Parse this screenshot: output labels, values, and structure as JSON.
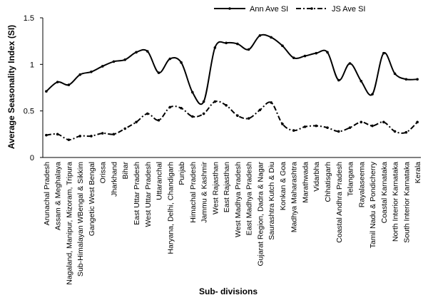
{
  "chart_data": {
    "type": "line",
    "title": "",
    "xlabel": "Sub- divisions",
    "ylabel": "Average Seasonality Index (SI)",
    "ylim": [
      0,
      1.5
    ],
    "y_ticks": [
      "0",
      "0.5",
      "1",
      "1.5"
    ],
    "grid": false,
    "legend_position": "top-right",
    "categories": [
      "Arunachal Pradesh",
      "Assam & Meghalaya",
      "Nagaland, Manipur, Mizoram, Tripura",
      "Sub-Himalayan WBengal & Sikkim",
      "Gangetic West Bengal",
      "Orissa",
      "Jharkhand",
      "Bihar",
      "East Uttar Pradesh",
      "West Uttar Pradesh",
      "Uttaranchal",
      "Haryana, Delhi, Chandigarh",
      "Punjab",
      "Himachal Pradesh",
      "Jammu & Kashmir",
      "West Rajasthan",
      "East Rajasthan",
      "West Madhya Pradesh",
      "East Madhya Pradesh",
      "Gujarat Region, Dadra & Nagar",
      "Saurashtra Kutch & Diu",
      "Konkan & Goa",
      "Madhya Maharashtra",
      "Marathwada",
      "Vidarbha",
      "Chhatisgarh",
      "Coastal Andhra Pradesh",
      "Telangana",
      "Rayalaseema",
      "Tamil Nadu & Pondicherry",
      "Coastal Karnataka",
      "North Interior Karnataka",
      "South Interior Karnataka",
      "Kerala"
    ],
    "series": [
      {
        "name": "Ann Ave SI",
        "style": "solid",
        "values": [
          0.71,
          0.81,
          0.78,
          0.89,
          0.92,
          0.98,
          1.03,
          1.05,
          1.13,
          1.14,
          0.91,
          1.06,
          1.02,
          0.7,
          0.6,
          1.18,
          1.23,
          1.22,
          1.16,
          1.31,
          1.29,
          1.2,
          1.07,
          1.09,
          1.12,
          1.13,
          0.83,
          1.01,
          0.82,
          0.68,
          1.12,
          0.9,
          0.84,
          0.84
        ]
      },
      {
        "name": "JS Ave SI",
        "style": "dash-dot",
        "values": [
          0.24,
          0.25,
          0.19,
          0.23,
          0.23,
          0.26,
          0.25,
          0.31,
          0.38,
          0.47,
          0.4,
          0.54,
          0.53,
          0.44,
          0.47,
          0.6,
          0.56,
          0.45,
          0.42,
          0.51,
          0.59,
          0.36,
          0.29,
          0.33,
          0.34,
          0.32,
          0.28,
          0.32,
          0.38,
          0.34,
          0.38,
          0.28,
          0.27,
          0.38
        ]
      }
    ],
    "colors": {
      "line": "#000000",
      "background": "#ffffff"
    }
  }
}
